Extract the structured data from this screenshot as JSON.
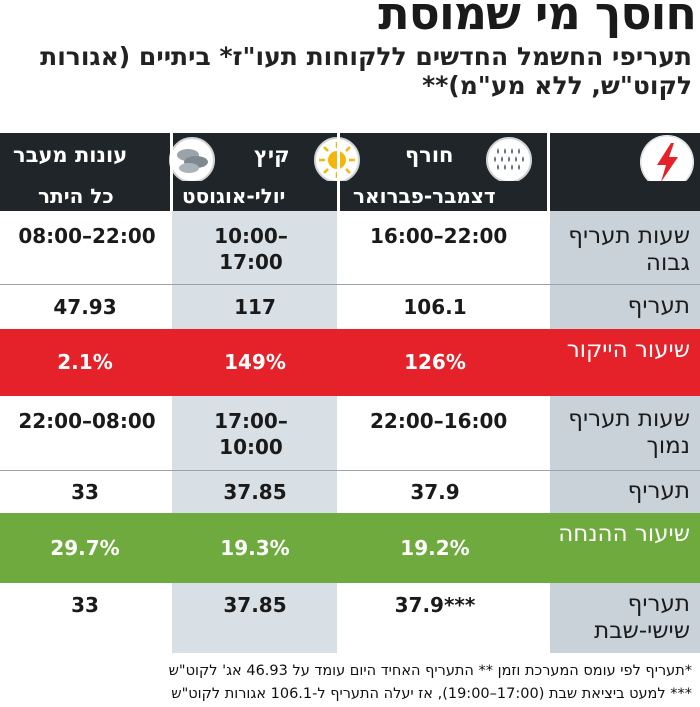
{
  "headline": "חוסך מי שמוסת",
  "subtitle": "תעריפי החשמל החדשים ללקוחות תעו\"ז* ביתיים (אגורות לקוט\"ש, ללא מע\"מ)**",
  "header": {
    "columns": [
      {
        "season": "חורף",
        "months": "דצמבר-פברואר",
        "icon": "rain-drops-icon"
      },
      {
        "season": "קיץ",
        "months": "יולי-אוגוסט",
        "icon": "sun-icon"
      },
      {
        "season": "עונות מעבר",
        "months": "כל היתר",
        "icon": "clouds-icon"
      }
    ],
    "corner_icon": "lightning-bolt-icon"
  },
  "rows": [
    {
      "label": "שעות תעריף גבוה",
      "values": [
        "16:00–22:00",
        "10:00–17:00",
        "08:00–22:00"
      ]
    },
    {
      "label": "תעריף",
      "values": [
        "106.1",
        "117",
        "47.93"
      ]
    },
    {
      "label": "שיעור הייקור",
      "values": [
        "126%",
        "149%",
        "2.1%"
      ]
    },
    {
      "label": "שעות תעריף נמוך",
      "values": [
        "22:00–16:00",
        "17:00–10:00",
        "22:00–08:00"
      ]
    },
    {
      "label": "תעריף",
      "values": [
        "37.9",
        "37.85",
        "33"
      ]
    },
    {
      "label": "שיעור ההנחה",
      "values": [
        "19.2%",
        "19.3%",
        "29.7%"
      ]
    },
    {
      "label": "תעריף שישי-שבת",
      "values": [
        "37.9***",
        "37.85",
        "33"
      ]
    }
  ],
  "footnotes": [
    "*תעריף לפי עומס המערכת וזמן ** התעריף האחיד היום עומד על 46.93 אג' לקוט\"ש",
    "*** למעט ביציאת שבת (17:00–19:00), אז יעלה התעריף ל-106.1 אגורות לקוט\"ש"
  ],
  "colors": {
    "header_bg": "#1f2528",
    "label_col": "#c9d2d8",
    "summer_col": "#d8e0e6",
    "increase_row": "#e52229",
    "discount_row": "#6faa3e",
    "lightning": "#e52229",
    "sun": "#f5b50a"
  }
}
